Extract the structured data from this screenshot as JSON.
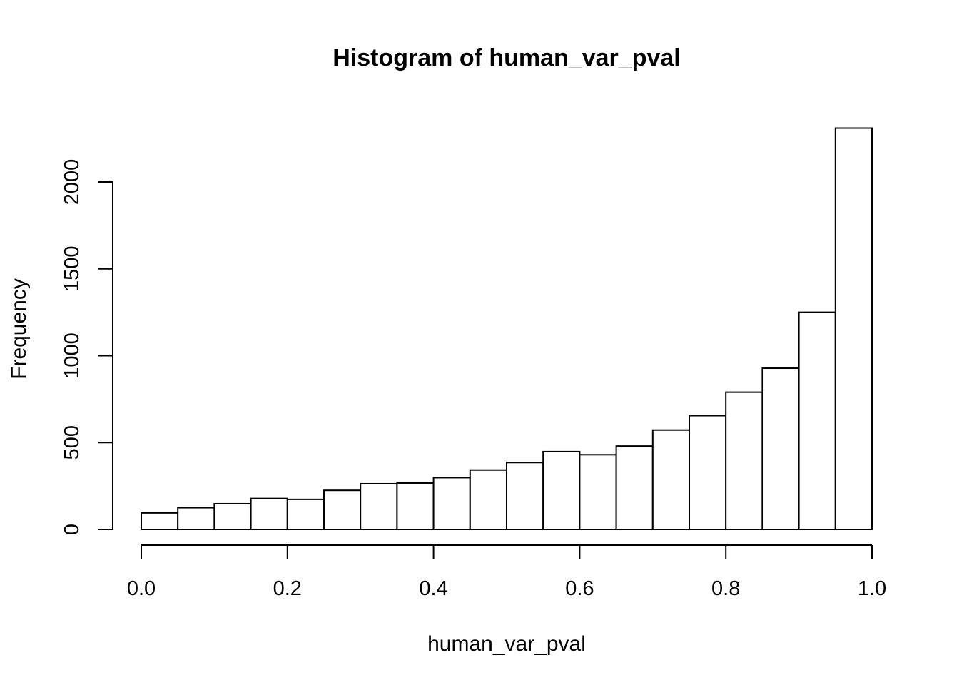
{
  "chart_data": {
    "type": "bar",
    "subtype": "histogram",
    "title": "Histogram of human_var_pval",
    "xlabel": "human_var_pval",
    "ylabel": "Frequency",
    "bin_edges": [
      0.0,
      0.05,
      0.1,
      0.15,
      0.2,
      0.25,
      0.3,
      0.35,
      0.4,
      0.45,
      0.5,
      0.55,
      0.6,
      0.65,
      0.7,
      0.75,
      0.8,
      0.85,
      0.9,
      0.95,
      1.0
    ],
    "values": [
      95,
      125,
      148,
      178,
      173,
      225,
      263,
      267,
      298,
      342,
      385,
      448,
      430,
      480,
      572,
      655,
      790,
      928,
      1250,
      2310
    ],
    "xlim": [
      0,
      1
    ],
    "ylim": [
      0,
      2310
    ],
    "x_ticks": [
      0.0,
      0.2,
      0.4,
      0.6,
      0.8,
      1.0
    ],
    "x_tick_labels": [
      "0.0",
      "0.2",
      "0.4",
      "0.6",
      "0.8",
      "1.0"
    ],
    "y_ticks": [
      0,
      500,
      1000,
      1500,
      2000
    ],
    "y_tick_labels": [
      "0",
      "500",
      "1000",
      "1500",
      "2000"
    ],
    "grid": false,
    "bar_fill": "#ffffff",
    "bar_stroke": "#000000"
  }
}
